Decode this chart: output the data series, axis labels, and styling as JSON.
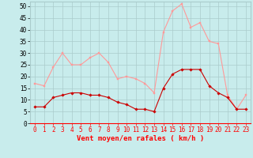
{
  "x": [
    0,
    1,
    2,
    3,
    4,
    5,
    6,
    7,
    8,
    9,
    10,
    11,
    12,
    13,
    14,
    15,
    16,
    17,
    18,
    19,
    20,
    21,
    22,
    23
  ],
  "mean_wind": [
    7,
    7,
    11,
    12,
    13,
    13,
    12,
    12,
    11,
    9,
    8,
    6,
    6,
    5,
    15,
    21,
    23,
    23,
    23,
    16,
    13,
    11,
    6,
    6
  ],
  "gust_wind": [
    17,
    16,
    24,
    30,
    25,
    25,
    28,
    30,
    26,
    19,
    20,
    19,
    17,
    13,
    39,
    48,
    51,
    41,
    43,
    35,
    34,
    12,
    6,
    12
  ],
  "bg_color": "#c8ecec",
  "grid_color": "#aacccc",
  "mean_color": "#cc0000",
  "gust_color": "#ff9999",
  "xlabel": "Vent moyen/en rafales ( km/h )",
  "ylim": [
    0,
    52
  ],
  "yticks": [
    0,
    5,
    10,
    15,
    20,
    25,
    30,
    35,
    40,
    45,
    50
  ],
  "tick_fontsize": 5.5,
  "xlabel_fontsize": 6.5
}
